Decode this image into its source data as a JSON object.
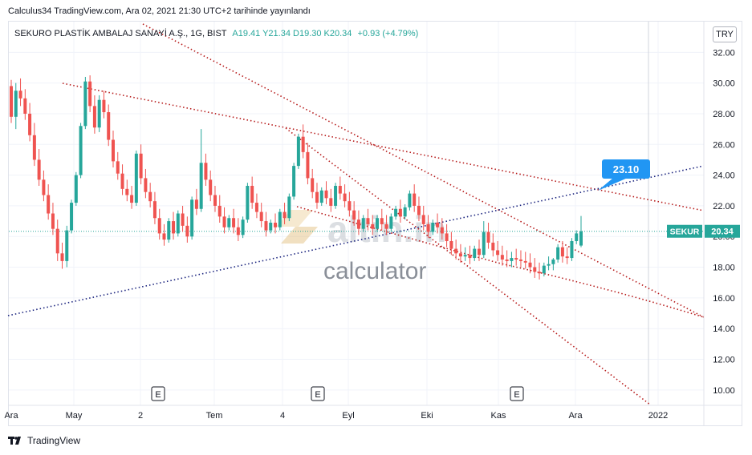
{
  "header": {
    "publish_line": "Calculus34 TradingView.com, Ara 02, 2021 21:30 UTC+2 tarihinde yayınlandı"
  },
  "legend": {
    "symbol": "SEKURO PLASTİK AMBALAJ SANAYİ A.Ş., 1G, BIST",
    "ohlc": "A19.41  Y21.34  D19.30  K20.34",
    "change": "+0.93 (+4.79%)"
  },
  "currency_badge": "TRY",
  "watermark": {
    "brand": "altin.in",
    "sub": "calculator"
  },
  "footer": {
    "logo_text": "TradingView"
  },
  "colors": {
    "up": "#26a69a",
    "down": "#ef5350",
    "trend_red": "#b71c1c",
    "trend_blue": "#1a237e",
    "label_blue": "#2196f3",
    "grid": "#f0f3fa"
  },
  "chart_data": {
    "type": "candlestick",
    "x_tick_labels": [
      "Ara",
      "May",
      "2",
      "Tem",
      "4",
      "Eyl",
      "Eki",
      "Kas",
      "Ara",
      "2022"
    ],
    "ylim": [
      9,
      34
    ],
    "y_tick_labels": [
      "10.00",
      "12.00",
      "14.00",
      "16.00",
      "18.00",
      "20.00",
      "22.00",
      "24.00",
      "26.00",
      "28.00",
      "30.00",
      "32.00"
    ],
    "last_price": {
      "symbol": "SEKUR",
      "value": "20.34"
    },
    "annotation": {
      "text": "23.10",
      "value": 23.1
    },
    "events": [
      "E",
      "E",
      "E"
    ],
    "candles": [
      [
        29.8,
        30.2,
        27.4,
        27.8
      ],
      [
        27.8,
        30.0,
        27.0,
        29.5
      ],
      [
        29.5,
        30.3,
        28.5,
        29.0
      ],
      [
        29.0,
        29.6,
        27.6,
        28.0
      ],
      [
        28.0,
        28.7,
        26.2,
        26.6
      ],
      [
        26.6,
        27.4,
        24.6,
        25.0
      ],
      [
        25.0,
        25.7,
        23.3,
        23.7
      ],
      [
        23.7,
        24.3,
        22.3,
        22.7
      ],
      [
        22.7,
        23.4,
        21.1,
        21.5
      ],
      [
        21.5,
        22.2,
        20.1,
        20.5
      ],
      [
        20.5,
        21.1,
        18.4,
        18.9
      ],
      [
        18.9,
        19.6,
        17.9,
        18.4
      ],
      [
        18.4,
        20.7,
        18.0,
        20.4
      ],
      [
        20.4,
        22.4,
        20.2,
        22.2
      ],
      [
        22.2,
        24.2,
        22.0,
        24.0
      ],
      [
        24.0,
        27.4,
        23.8,
        27.2
      ],
      [
        27.2,
        30.4,
        27.0,
        30.1
      ],
      [
        30.1,
        30.5,
        28.1,
        28.5
      ],
      [
        28.5,
        29.2,
        26.7,
        27.1
      ],
      [
        27.1,
        29.2,
        26.8,
        28.9
      ],
      [
        28.9,
        29.5,
        27.7,
        28.1
      ],
      [
        28.1,
        28.6,
        25.9,
        26.3
      ],
      [
        26.3,
        26.9,
        24.5,
        24.9
      ],
      [
        24.9,
        25.5,
        23.7,
        24.1
      ],
      [
        24.1,
        24.7,
        22.7,
        23.1
      ],
      [
        23.1,
        23.7,
        22.3,
        22.7
      ],
      [
        22.7,
        23.3,
        21.8,
        22.2
      ],
      [
        22.2,
        25.6,
        22.0,
        25.4
      ],
      [
        25.4,
        26.0,
        23.4,
        23.8
      ],
      [
        23.8,
        24.4,
        22.5,
        22.9
      ],
      [
        22.9,
        23.5,
        21.9,
        22.3
      ],
      [
        22.3,
        22.9,
        20.8,
        21.2
      ],
      [
        21.2,
        21.8,
        19.8,
        20.2
      ],
      [
        20.2,
        20.8,
        19.4,
        19.8
      ],
      [
        19.8,
        21.2,
        19.6,
        21.0
      ],
      [
        21.0,
        21.6,
        19.8,
        20.2
      ],
      [
        20.2,
        21.7,
        20.0,
        21.5
      ],
      [
        21.5,
        22.0,
        20.3,
        20.7
      ],
      [
        20.7,
        21.3,
        19.6,
        20.0
      ],
      [
        20.0,
        22.6,
        19.8,
        22.4
      ],
      [
        22.4,
        23.1,
        21.4,
        21.8
      ],
      [
        21.8,
        27.0,
        21.6,
        24.8
      ],
      [
        24.8,
        25.4,
        23.3,
        23.7
      ],
      [
        23.7,
        24.3,
        22.3,
        22.7
      ],
      [
        22.7,
        23.3,
        21.6,
        22.0
      ],
      [
        22.0,
        22.7,
        20.9,
        21.3
      ],
      [
        21.3,
        21.9,
        20.2,
        20.6
      ],
      [
        20.6,
        21.4,
        20.4,
        21.2
      ],
      [
        21.2,
        21.8,
        20.2,
        20.6
      ],
      [
        20.6,
        21.2,
        19.7,
        20.1
      ],
      [
        20.1,
        21.3,
        19.9,
        21.1
      ],
      [
        21.1,
        23.5,
        20.9,
        23.3
      ],
      [
        23.3,
        23.9,
        21.8,
        22.2
      ],
      [
        22.2,
        22.8,
        21.2,
        21.6
      ],
      [
        21.6,
        22.2,
        20.6,
        21.0
      ],
      [
        21.0,
        21.6,
        20.0,
        20.4
      ],
      [
        20.4,
        21.1,
        20.2,
        20.9
      ],
      [
        20.9,
        21.5,
        20.2,
        20.6
      ],
      [
        20.6,
        21.8,
        20.4,
        21.6
      ],
      [
        21.6,
        22.2,
        20.8,
        21.2
      ],
      [
        21.2,
        22.8,
        21.0,
        22.6
      ],
      [
        22.6,
        24.8,
        22.4,
        24.6
      ],
      [
        24.6,
        26.7,
        24.4,
        26.5
      ],
      [
        26.5,
        27.3,
        25.1,
        25.5
      ],
      [
        25.5,
        26.1,
        23.4,
        23.8
      ],
      [
        23.8,
        24.4,
        22.5,
        22.9
      ],
      [
        22.9,
        23.5,
        21.8,
        22.2
      ],
      [
        22.2,
        23.2,
        22.0,
        23.0
      ],
      [
        23.0,
        23.6,
        22.1,
        22.5
      ],
      [
        22.5,
        23.1,
        21.6,
        22.0
      ],
      [
        22.0,
        23.5,
        21.8,
        23.3
      ],
      [
        23.3,
        23.9,
        22.4,
        22.8
      ],
      [
        22.8,
        23.4,
        21.9,
        22.3
      ],
      [
        22.3,
        22.9,
        21.3,
        21.7
      ],
      [
        21.7,
        22.3,
        20.7,
        21.1
      ],
      [
        21.1,
        21.7,
        20.1,
        20.5
      ],
      [
        20.5,
        21.4,
        20.3,
        21.2
      ],
      [
        21.2,
        21.8,
        20.4,
        20.8
      ],
      [
        20.8,
        21.4,
        20.1,
        20.5
      ],
      [
        20.5,
        21.4,
        20.3,
        21.2
      ],
      [
        21.2,
        21.8,
        20.4,
        20.8
      ],
      [
        20.8,
        21.4,
        20.1,
        20.5
      ],
      [
        20.5,
        21.5,
        20.3,
        21.3
      ],
      [
        21.3,
        22.0,
        21.1,
        21.8
      ],
      [
        21.8,
        22.4,
        20.9,
        21.3
      ],
      [
        21.3,
        22.1,
        21.1,
        21.9
      ],
      [
        21.9,
        23.0,
        21.7,
        22.8
      ],
      [
        22.8,
        23.4,
        21.6,
        22.0
      ],
      [
        22.0,
        22.6,
        21.0,
        21.4
      ],
      [
        21.4,
        22.0,
        20.4,
        20.8
      ],
      [
        20.8,
        21.4,
        19.9,
        20.3
      ],
      [
        20.3,
        21.1,
        20.1,
        20.9
      ],
      [
        20.9,
        21.5,
        20.2,
        20.6
      ],
      [
        20.6,
        21.2,
        19.8,
        20.2
      ],
      [
        20.2,
        20.8,
        19.3,
        19.7
      ],
      [
        19.7,
        20.3,
        18.8,
        19.2
      ],
      [
        19.2,
        19.8,
        18.5,
        18.9
      ],
      [
        18.9,
        19.5,
        18.3,
        18.7
      ],
      [
        18.7,
        19.3,
        18.4,
        18.8
      ],
      [
        18.8,
        19.4,
        18.2,
        18.6
      ],
      [
        18.6,
        19.4,
        18.4,
        19.2
      ],
      [
        19.2,
        19.8,
        18.4,
        18.8
      ],
      [
        18.8,
        21.0,
        18.6,
        20.3
      ],
      [
        20.3,
        20.9,
        19.2,
        19.6
      ],
      [
        19.6,
        20.2,
        18.7,
        19.1
      ],
      [
        19.1,
        19.7,
        18.4,
        18.8
      ],
      [
        18.8,
        19.4,
        18.1,
        18.5
      ],
      [
        18.5,
        19.1,
        18.0,
        18.4
      ],
      [
        18.4,
        19.0,
        18.0,
        18.6
      ],
      [
        18.6,
        19.2,
        18.1,
        18.5
      ],
      [
        18.5,
        19.1,
        18.0,
        18.4
      ],
      [
        18.4,
        19.0,
        17.9,
        18.3
      ],
      [
        18.3,
        18.9,
        17.6,
        18.0
      ],
      [
        18.0,
        18.6,
        17.3,
        17.7
      ],
      [
        17.7,
        18.3,
        17.2,
        17.6
      ],
      [
        17.6,
        18.3,
        17.4,
        18.1
      ],
      [
        18.1,
        18.7,
        17.8,
        18.2
      ],
      [
        18.2,
        18.6,
        17.8,
        18.5
      ],
      [
        18.5,
        19.5,
        18.3,
        19.3
      ],
      [
        19.3,
        19.7,
        18.3,
        18.7
      ],
      [
        18.7,
        19.3,
        18.2,
        18.6
      ],
      [
        18.6,
        19.9,
        18.4,
        19.7
      ],
      [
        19.7,
        20.4,
        19.5,
        20.2
      ],
      [
        19.41,
        21.34,
        19.3,
        20.34
      ]
    ]
  }
}
